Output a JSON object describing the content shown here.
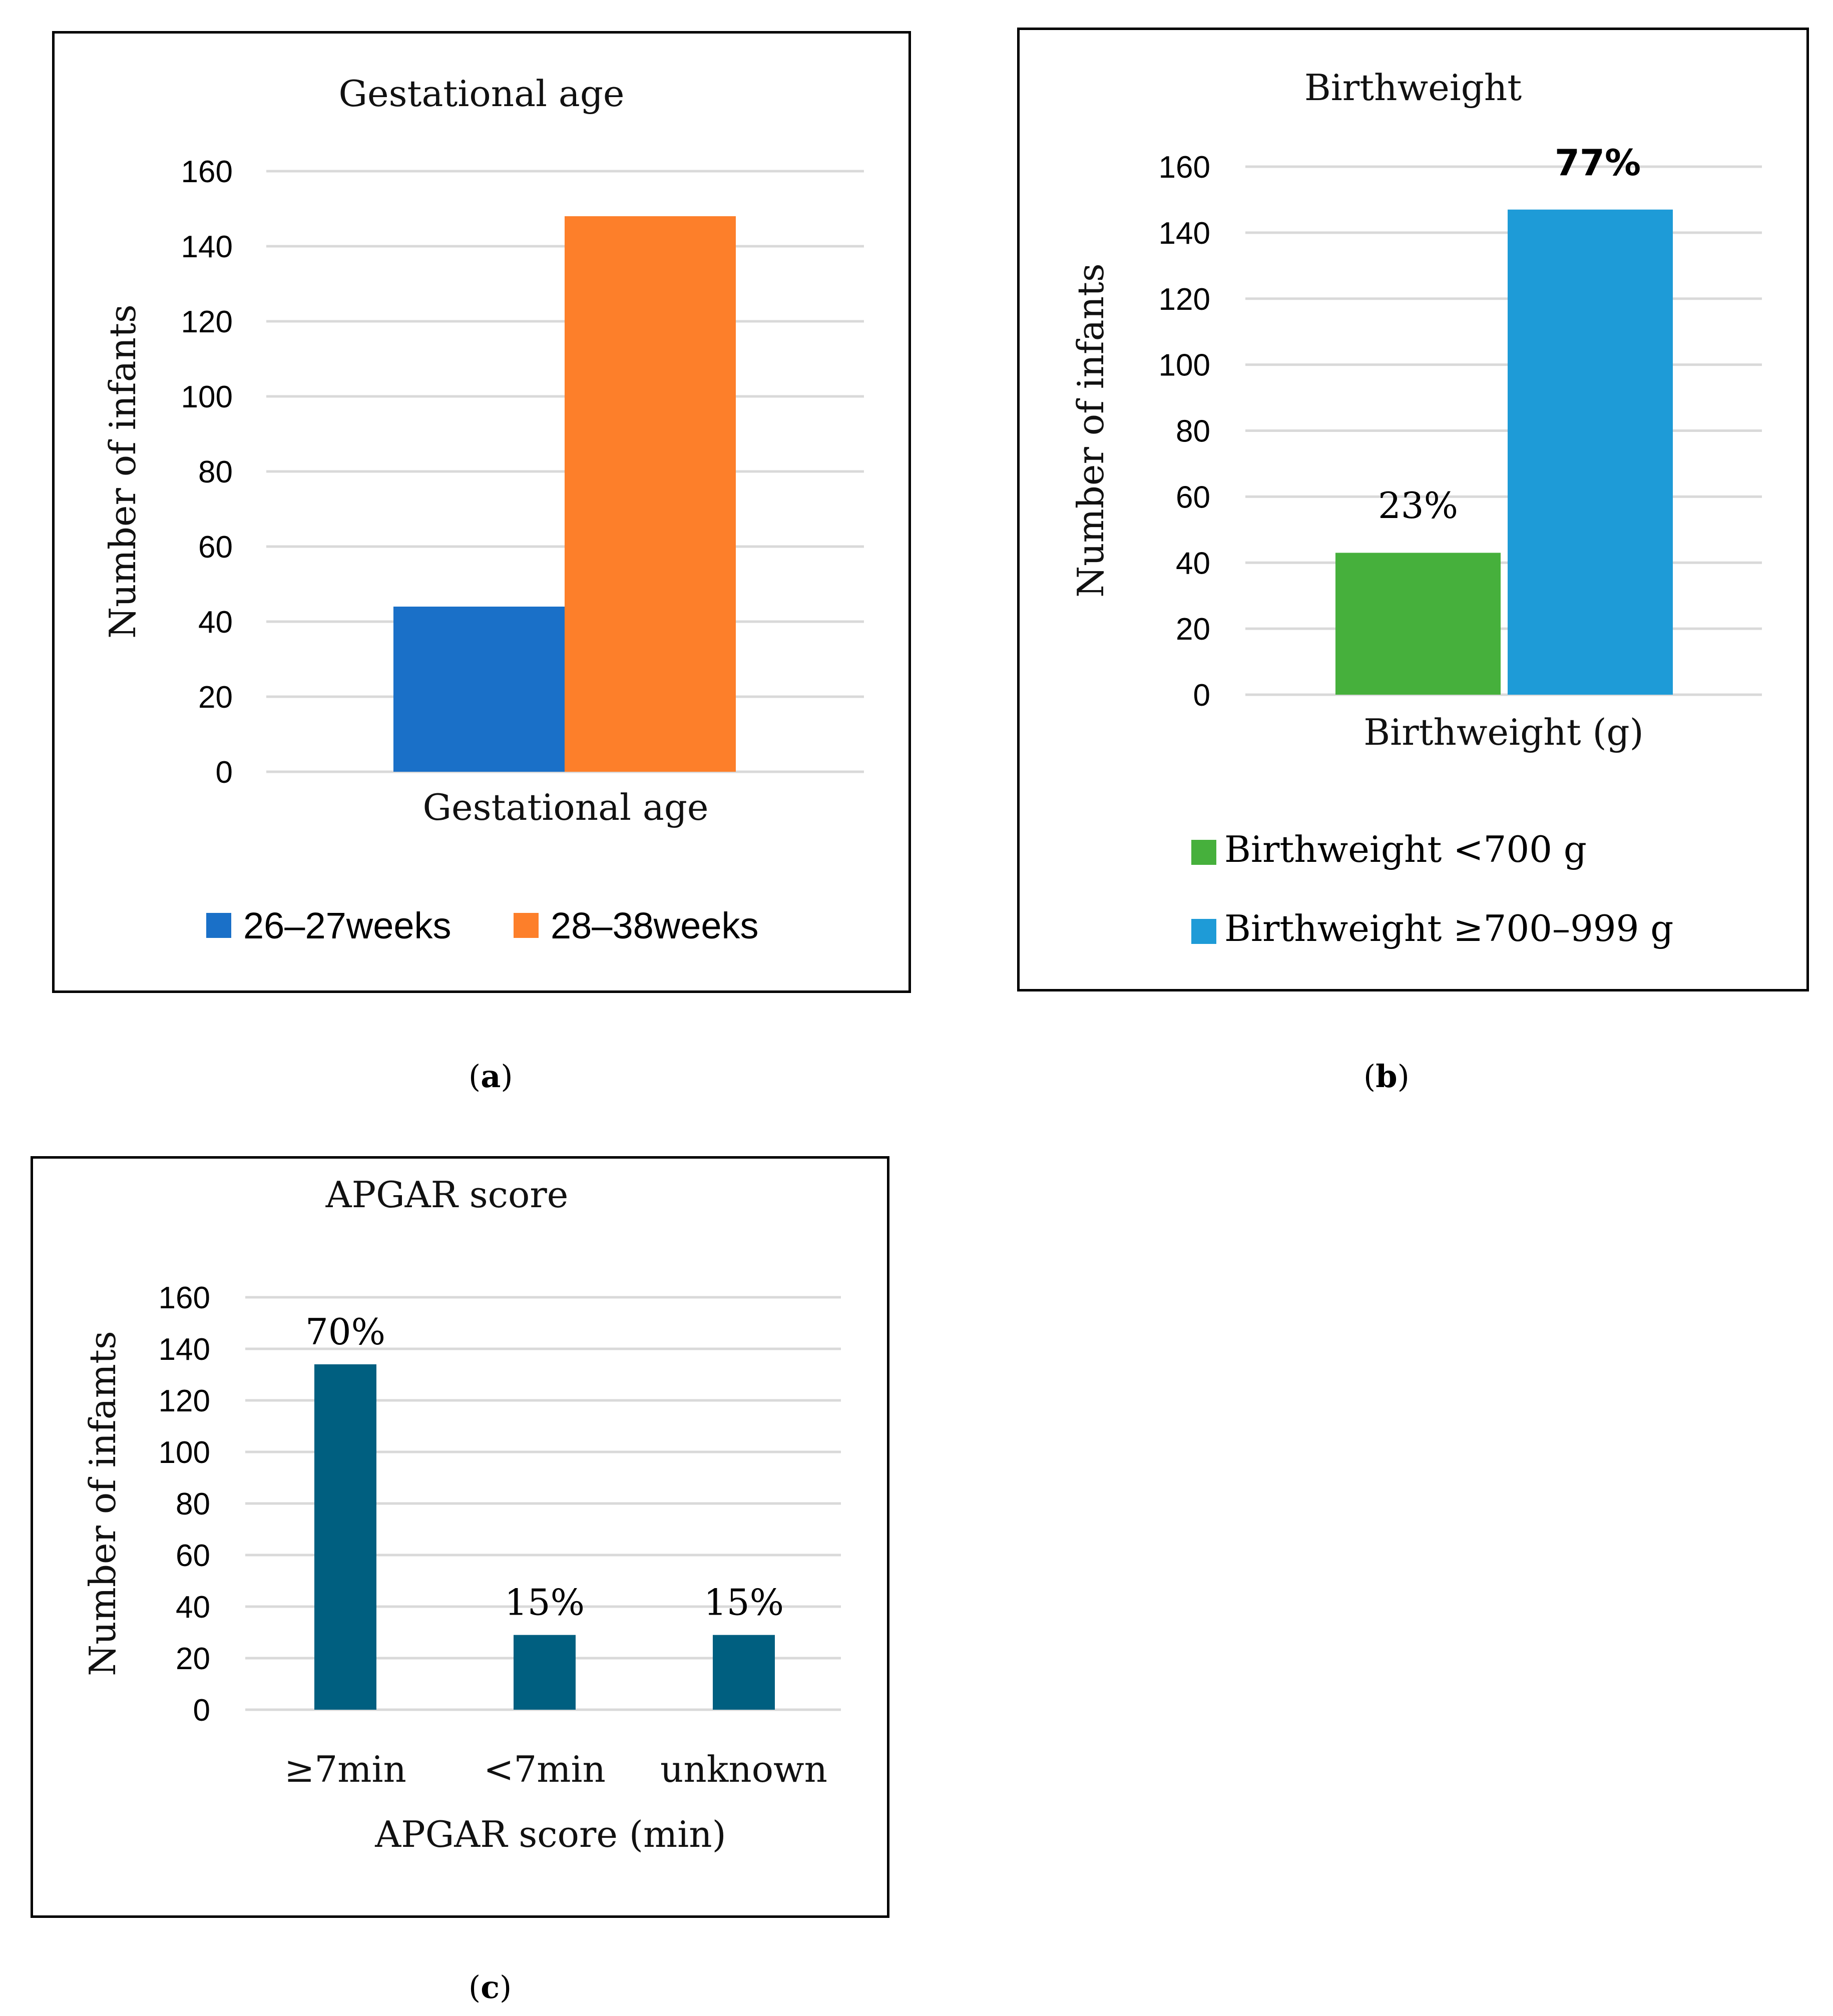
{
  "chart_data": [
    {
      "panel": "a",
      "type": "bar",
      "title": "Gestational age",
      "xlabel": "Gestational age",
      "ylabel": "Number of infants",
      "ylim": [
        0,
        160
      ],
      "yticks": [
        0,
        20,
        40,
        60,
        80,
        100,
        120,
        140,
        160
      ],
      "categories": [
        "Gestational age"
      ],
      "series": [
        {
          "name": "26–27weeks",
          "values": [
            44
          ],
          "color": "#1a70c8"
        },
        {
          "name": "28–38weeks",
          "values": [
            148
          ],
          "color": "#fd7f2a"
        }
      ],
      "legend_position": "bottom"
    },
    {
      "panel": "b",
      "type": "bar",
      "title": "Birthweight",
      "xlabel": "Birthweight (g)",
      "ylabel": "Number of infants",
      "ylim": [
        0,
        160
      ],
      "yticks": [
        0,
        20,
        40,
        60,
        80,
        100,
        120,
        140,
        160
      ],
      "categories": [
        "Birthweight (g)"
      ],
      "series": [
        {
          "name": "Birthweight <700 g",
          "values": [
            43
          ],
          "label": "23%",
          "color": "#46b03c"
        },
        {
          "name": "Birthweight ≥700–999 g",
          "values": [
            147
          ],
          "label": "77%",
          "color": "#1e9bd7"
        }
      ],
      "legend_position": "bottom"
    },
    {
      "panel": "c",
      "type": "bar",
      "title": "APGAR score",
      "xlabel": "APGAR score (min)",
      "ylabel": "Number of infamts",
      "ylim": [
        0,
        160
      ],
      "yticks": [
        0,
        20,
        40,
        60,
        80,
        100,
        120,
        140,
        160
      ],
      "categories": [
        "≥7min",
        "<7min",
        "unknown"
      ],
      "values": [
        134,
        29,
        29
      ],
      "labels": [
        "70%",
        "15%",
        "15%"
      ],
      "color": "#005f80"
    }
  ],
  "captions": {
    "a": "a",
    "b": "b",
    "c": "c"
  }
}
